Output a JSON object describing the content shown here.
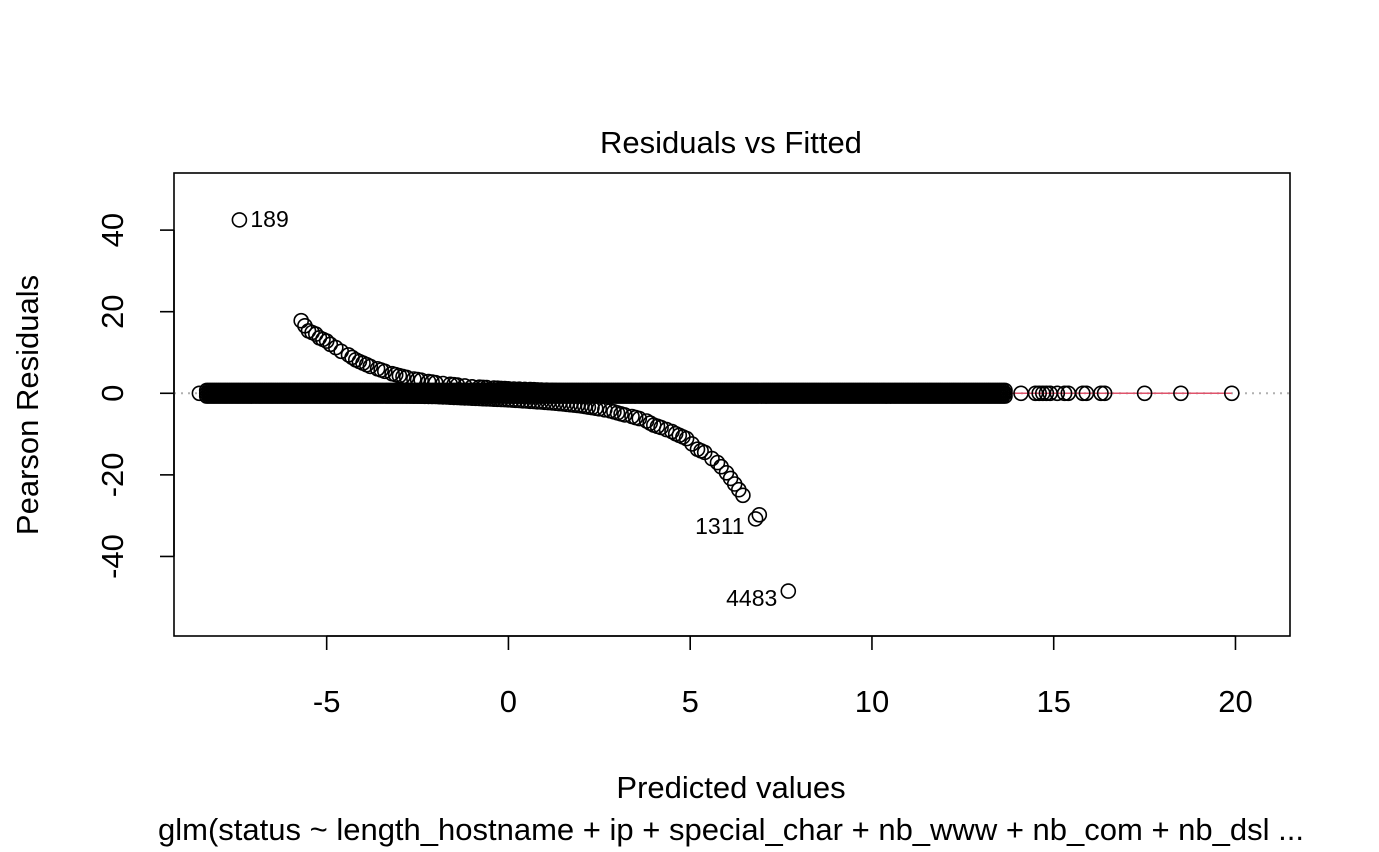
{
  "chart_data": {
    "type": "scatter",
    "title": "Residuals vs Fitted",
    "xlabel": "Predicted values",
    "ylabel": "Pearson Residuals",
    "subtitle": "glm(status ~ length_hostname + ip + special_char + nb_www + nb_com + nb_dsl ...",
    "xlim": [
      -9.2,
      21.5
    ],
    "ylim": [
      -59.5,
      54.0
    ],
    "x_ticks": [
      -5,
      0,
      5,
      10,
      15,
      20
    ],
    "y_ticks": [
      -40,
      -20,
      0,
      20,
      40
    ],
    "reference_line": {
      "y": 0,
      "style": "dotted",
      "color": "#b0b0b0"
    },
    "smooth_line": {
      "color": "#df536b",
      "x": [
        -7.0,
        19.9
      ],
      "y": [
        0,
        0
      ]
    },
    "labeled_points": [
      {
        "label": "189",
        "x": -7.4,
        "y": 42.5
      },
      {
        "label": "1311",
        "x": 6.8,
        "y": -30.8
      },
      {
        "label": "4483",
        "x": 7.7,
        "y": -48.5
      }
    ],
    "upper_branch": {
      "x": [
        -5.7,
        -5.5,
        -5.3,
        -5.2,
        -5.0,
        -4.9,
        -4.75,
        -4.6,
        -4.4,
        -4.2,
        -4.0,
        -3.8,
        -3.6,
        -3.4,
        -3.2,
        -3.0,
        -2.8,
        -2.6,
        -2.4,
        -2.2,
        -2.0,
        -1.8,
        -1.6,
        -1.4,
        -1.2,
        -1.0,
        -0.8,
        -0.6,
        -0.4,
        -0.2,
        0.0,
        0.3,
        0.6,
        0.9,
        1.2,
        1.5,
        1.8,
        2.1
      ],
      "y": [
        17.8,
        15.3,
        14.5,
        13.6,
        12.8,
        12.0,
        11.2,
        10.3,
        9.4,
        8.2,
        7.4,
        6.6,
        6.0,
        5.4,
        4.8,
        4.3,
        3.9,
        3.5,
        3.2,
        2.9,
        2.6,
        2.4,
        2.2,
        2.0,
        1.8,
        1.6,
        1.5,
        1.4,
        1.3,
        1.2,
        1.1,
        1.0,
        0.9,
        0.8,
        0.7,
        0.6,
        0.5,
        0.4
      ]
    },
    "lower_branch": {
      "x": [
        -3.5,
        -3.0,
        -2.5,
        -2.0,
        -1.5,
        -1.0,
        -0.5,
        0.0,
        0.5,
        1.0,
        1.5,
        2.0,
        2.5,
        2.8,
        3.0,
        3.2,
        3.4,
        3.6,
        3.8,
        4.0,
        4.2,
        4.35,
        4.5,
        4.6,
        4.7,
        4.8,
        4.9,
        5.2,
        5.4,
        5.6,
        5.75,
        5.85,
        6.0,
        6.45
      ],
      "y": [
        -0.5,
        -0.6,
        -0.7,
        -0.8,
        -1.0,
        -1.2,
        -1.4,
        -1.6,
        -1.9,
        -2.2,
        -2.6,
        -3.1,
        -3.8,
        -4.3,
        -4.8,
        -5.3,
        -5.7,
        -6.2,
        -6.8,
        -7.8,
        -8.4,
        -8.9,
        -9.4,
        -9.9,
        -10.3,
        -10.7,
        -11.1,
        -13.7,
        -14.5,
        -16.0,
        -17.0,
        -18.0,
        -19.5,
        -25.0
      ]
    },
    "zero_band": {
      "x_dense": [
        -8.3,
        13.7
      ],
      "x_sparse": [
        -8.5,
        -8.1,
        -7.8,
        -7.6,
        -7.3,
        -7.1,
        14.1,
        14.5,
        14.6,
        14.7,
        14.8,
        14.9,
        15.1,
        15.3,
        15.4,
        15.8,
        15.9,
        16.3,
        16.4,
        17.5,
        18.5,
        19.9
      ],
      "y": [
        0
      ]
    },
    "extra_points": {
      "x": [
        6.9
      ],
      "y": [
        -29.8
      ]
    }
  }
}
